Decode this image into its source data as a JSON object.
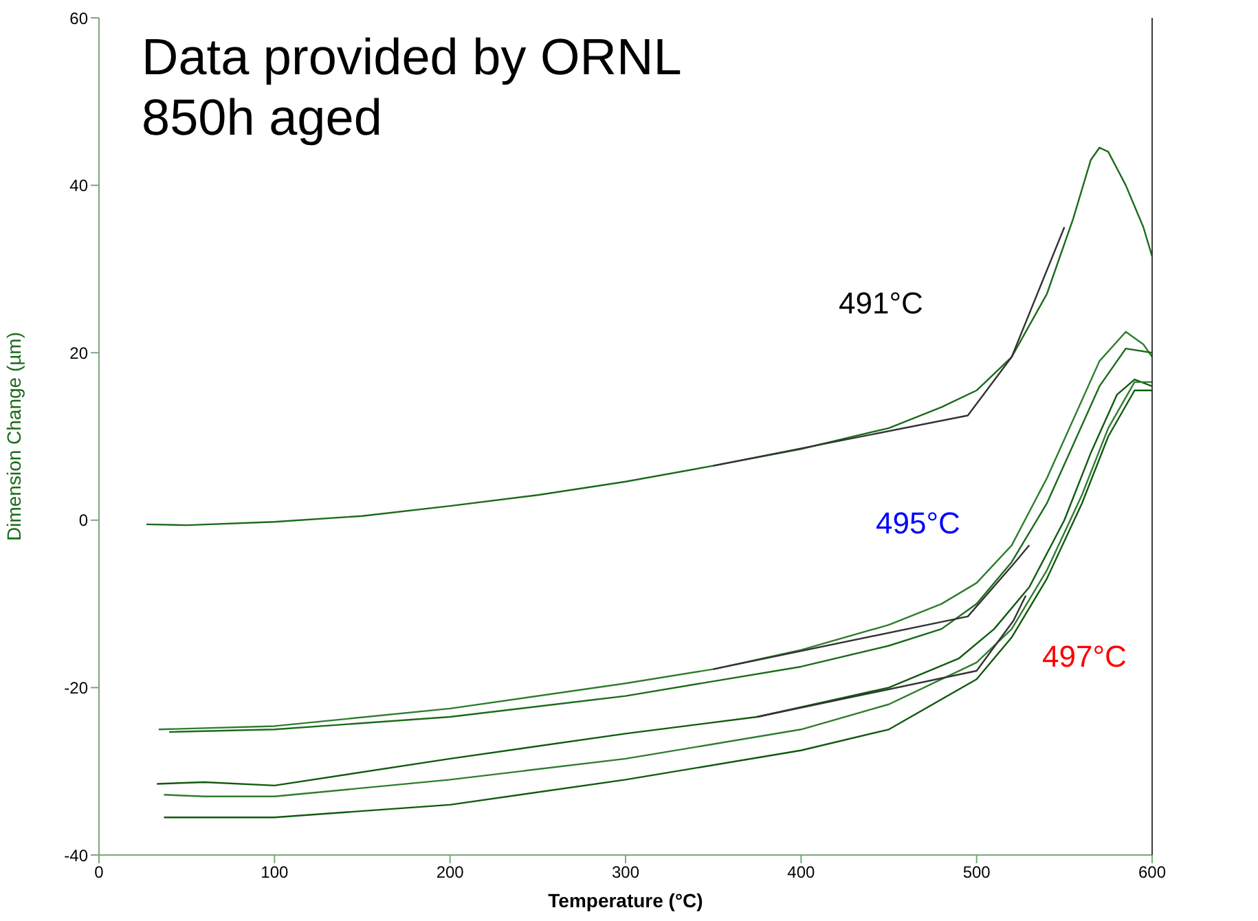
{
  "chart_data": {
    "type": "line",
    "title": "Data provided by ORNL",
    "subtitle": "850h aged",
    "xlabel": "Temperature (°C)",
    "ylabel": "Dimension Change (µm)",
    "xlim": [
      0,
      600
    ],
    "xticks": [
      0,
      100,
      200,
      300,
      400,
      500,
      600
    ],
    "ylim": [
      -40,
      60
    ],
    "yticks": [
      -40,
      -20,
      0,
      20,
      40,
      60
    ],
    "grid": false,
    "marker": "none",
    "line_style": "solid",
    "annotations": [
      "491°C",
      "495°C",
      "497°C"
    ],
    "series": [
      {
        "color": "#1a6b1a",
        "x": [
          27,
          50,
          100,
          150,
          200,
          250,
          300,
          350,
          400,
          450,
          480,
          500,
          520,
          540,
          555,
          565,
          570,
          575,
          585,
          595,
          600
        ],
        "values": [
          -0.5,
          -0.6,
          -0.2,
          0.5,
          1.7,
          3,
          4.6,
          6.5,
          8.5,
          11,
          13.5,
          15.5,
          19.5,
          27,
          36,
          43,
          44.5,
          44,
          40,
          35,
          31.5
        ]
      },
      {
        "color": "#2e7d2e",
        "x": [
          34,
          100,
          200,
          300,
          350,
          400,
          450,
          480,
          500,
          520,
          540,
          555,
          570,
          585,
          595,
          600
        ],
        "values": [
          -25,
          -24.6,
          -22.5,
          -19.5,
          -17.8,
          -15.5,
          -12.5,
          -10,
          -7.5,
          -3,
          5,
          12,
          19,
          22.5,
          21,
          19.5
        ]
      },
      {
        "color": "#1a6b1a",
        "x": [
          40,
          100,
          200,
          300,
          400,
          450,
          480,
          500,
          520,
          540,
          555,
          570,
          585,
          600
        ],
        "values": [
          -25.3,
          -25,
          -23.5,
          -21,
          -17.5,
          -15,
          -13,
          -10,
          -5,
          2,
          9,
          16,
          20.5,
          20
        ]
      },
      {
        "color": "#0f5a0f",
        "x": [
          33,
          60,
          100,
          200,
          300,
          375,
          450,
          490,
          510,
          530,
          550,
          565,
          580,
          590,
          600
        ],
        "values": [
          -31.5,
          -31.3,
          -31.7,
          -28.5,
          -25.5,
          -23.5,
          -20,
          -16.5,
          -13,
          -8,
          0,
          8,
          15,
          16.8,
          16
        ]
      },
      {
        "color": "#2e7d2e",
        "x": [
          37,
          60,
          100,
          200,
          300,
          400,
          450,
          500,
          520,
          540,
          560,
          575,
          590,
          600
        ],
        "values": [
          -32.8,
          -33,
          -33,
          -31,
          -28.5,
          -25,
          -22,
          -17,
          -13,
          -6,
          3,
          11,
          16.5,
          16.5
        ]
      },
      {
        "color": "#0f5a0f",
        "x": [
          37,
          100,
          200,
          300,
          400,
          450,
          500,
          520,
          540,
          560,
          575,
          590,
          600
        ],
        "values": [
          -35.5,
          -35.5,
          -34,
          -31,
          -27.5,
          -25,
          -19,
          -14,
          -7,
          2,
          10,
          15.5,
          15.5
        ]
      },
      {
        "color": "#333333",
        "x": [
          350,
          495,
          520,
          550
        ],
        "values": [
          6.5,
          12.5,
          19.5,
          35
        ]
      },
      {
        "color": "#333333",
        "x": [
          350,
          495,
          522,
          530
        ],
        "values": [
          -17.8,
          -11.5,
          -5,
          -3
        ]
      },
      {
        "color": "#333333",
        "x": [
          375,
          500,
          521,
          528
        ],
        "values": [
          -23.5,
          -18,
          -12,
          -9
        ]
      }
    ]
  }
}
